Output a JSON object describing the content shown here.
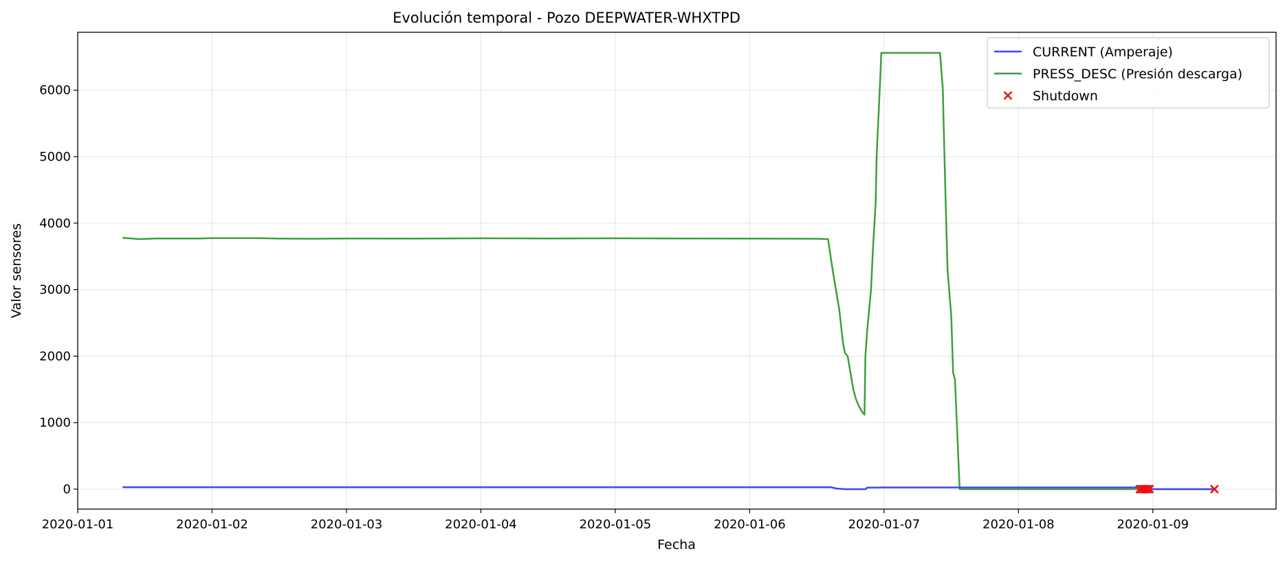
{
  "chart_data": {
    "type": "line",
    "title": "Evolución temporal - Pozo DEEPWATER-WHXTPD",
    "xlabel": "Fecha",
    "ylabel": "Valor sensores",
    "xlim": [
      "2020-01-01T00:00",
      "2020-01-09T22:00"
    ],
    "ylim": [
      -300,
      6870
    ],
    "grid": true,
    "legend_position": "top-right",
    "x_ticks": [
      "2020-01-01",
      "2020-01-02",
      "2020-01-03",
      "2020-01-04",
      "2020-01-05",
      "2020-01-06",
      "2020-01-07",
      "2020-01-08",
      "2020-01-09"
    ],
    "y_ticks": [
      0,
      1000,
      2000,
      3000,
      4000,
      5000,
      6000
    ],
    "series": [
      {
        "name": "CURRENT (Amperaje)",
        "color": "#4444ee",
        "points": [
          [
            "2020-01-01T08:00",
            30
          ],
          [
            "2020-01-02T00:00",
            30
          ],
          [
            "2020-01-03T00:00",
            30
          ],
          [
            "2020-01-04T00:00",
            30
          ],
          [
            "2020-01-05T00:00",
            30
          ],
          [
            "2020-01-06T00:00",
            30
          ],
          [
            "2020-01-06T14:30",
            30
          ],
          [
            "2020-01-06T15:30",
            10
          ],
          [
            "2020-01-06T17:00",
            0
          ],
          [
            "2020-01-06T20:40",
            0
          ],
          [
            "2020-01-06T21:00",
            22
          ],
          [
            "2020-01-07T00:00",
            25
          ],
          [
            "2020-01-07T12:00",
            25
          ],
          [
            "2020-01-07T13:00",
            25
          ],
          [
            "2020-01-08T00:00",
            25
          ],
          [
            "2020-01-08T21:30",
            25
          ],
          [
            "2020-01-08T22:00",
            0
          ],
          [
            "2020-01-09T11:00",
            0
          ]
        ]
      },
      {
        "name": "PRESS_DESC (Presión descarga)",
        "color": "#3d9e3d",
        "points": [
          [
            "2020-01-01T08:00",
            3780
          ],
          [
            "2020-01-01T11:00",
            3760
          ],
          [
            "2020-01-01T14:00",
            3770
          ],
          [
            "2020-01-01T18:00",
            3770
          ],
          [
            "2020-01-01T22:00",
            3770
          ],
          [
            "2020-01-02T00:00",
            3775
          ],
          [
            "2020-01-02T08:00",
            3775
          ],
          [
            "2020-01-02T12:00",
            3768
          ],
          [
            "2020-01-02T18:00",
            3765
          ],
          [
            "2020-01-03T00:00",
            3770
          ],
          [
            "2020-01-03T12:00",
            3768
          ],
          [
            "2020-01-04T00:00",
            3772
          ],
          [
            "2020-01-04T12:00",
            3770
          ],
          [
            "2020-01-05T00:00",
            3772
          ],
          [
            "2020-01-05T12:00",
            3770
          ],
          [
            "2020-01-06T00:00",
            3768
          ],
          [
            "2020-01-06T12:00",
            3765
          ],
          [
            "2020-01-06T14:00",
            3760
          ],
          [
            "2020-01-06T14:40",
            3380
          ],
          [
            "2020-01-06T15:00",
            3200
          ],
          [
            "2020-01-06T16:00",
            2700
          ],
          [
            "2020-01-06T16:40",
            2200
          ],
          [
            "2020-01-06T17:00",
            2050
          ],
          [
            "2020-01-06T17:30",
            2000
          ],
          [
            "2020-01-06T18:00",
            1750
          ],
          [
            "2020-01-06T18:30",
            1500
          ],
          [
            "2020-01-06T19:00",
            1350
          ],
          [
            "2020-01-06T19:30",
            1250
          ],
          [
            "2020-01-06T20:00",
            1170
          ],
          [
            "2020-01-06T20:30",
            1120
          ],
          [
            "2020-01-06T20:40",
            2000
          ],
          [
            "2020-01-06T21:00",
            2400
          ],
          [
            "2020-01-06T21:40",
            3000
          ],
          [
            "2020-01-06T22:00",
            3600
          ],
          [
            "2020-01-06T22:30",
            4300
          ],
          [
            "2020-01-06T22:40",
            5000
          ],
          [
            "2020-01-06T23:00",
            5600
          ],
          [
            "2020-01-06T23:20",
            6200
          ],
          [
            "2020-01-06T23:30",
            6560
          ],
          [
            "2020-01-07T10:00",
            6560
          ],
          [
            "2020-01-07T10:30",
            6000
          ],
          [
            "2020-01-07T10:40",
            5400
          ],
          [
            "2020-01-07T11:00",
            4300
          ],
          [
            "2020-01-07T11:20",
            3300
          ],
          [
            "2020-01-07T12:00",
            2600
          ],
          [
            "2020-01-07T12:20",
            1750
          ],
          [
            "2020-01-07T12:40",
            1650
          ],
          [
            "2020-01-07T13:30",
            0
          ],
          [
            "2020-01-09T11:00",
            0
          ]
        ]
      }
    ],
    "shutdown": {
      "name": "Shutdown",
      "color": "#ee1111",
      "points": [
        [
          "2020-01-08T21:40",
          0
        ],
        [
          "2020-01-08T21:55",
          0
        ],
        [
          "2020-01-08T22:10",
          0
        ],
        [
          "2020-01-08T22:25",
          0
        ],
        [
          "2020-01-08T22:40",
          0
        ],
        [
          "2020-01-08T22:55",
          0
        ],
        [
          "2020-01-08T23:10",
          0
        ],
        [
          "2020-01-08T23:25",
          0
        ],
        [
          "2020-01-09T11:00",
          0
        ]
      ]
    }
  }
}
